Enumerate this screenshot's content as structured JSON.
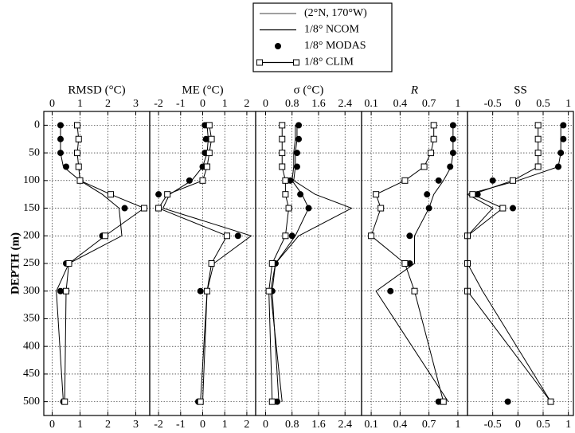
{
  "legend": [
    {
      "name": "(2°N, 170°W)",
      "style": "line"
    },
    {
      "name": "1/8° NCOM",
      "style": "line"
    },
    {
      "name": "1/8° MODAS",
      "style": "dots"
    },
    {
      "name": "1/8° CLIM",
      "style": "squares-line"
    }
  ],
  "chart_data": [
    {
      "type": "line",
      "xlabel": "RMSD (°C)",
      "ylabel": "DEPTH (m)",
      "xlim": [
        -0.3,
        3.5
      ],
      "xticks": [
        0,
        1,
        2,
        3
      ],
      "ylim": [
        -25,
        525
      ],
      "yticks": [
        0,
        50,
        100,
        150,
        200,
        250,
        300,
        350,
        400,
        450,
        500
      ],
      "grid": true,
      "y": [
        0,
        25,
        50,
        75,
        100,
        125,
        150,
        200,
        250,
        300,
        500
      ],
      "series": [
        {
          "style": "line",
          "color": "#000000",
          "values": [
            0.3,
            0.3,
            0.3,
            0.4,
            1.0,
            1.8,
            2.4,
            2.5,
            0.6,
            0.15,
            0.4
          ]
        },
        {
          "style": "dots",
          "color": "#000000",
          "values": [
            0.3,
            0.3,
            0.3,
            0.5,
            null,
            null,
            2.6,
            1.8,
            0.5,
            0.3,
            0.4
          ]
        },
        {
          "style": "squares-line",
          "color": "#000000",
          "values": [
            0.9,
            0.95,
            0.9,
            0.95,
            1.0,
            2.1,
            3.3,
            1.9,
            0.6,
            0.5,
            0.45
          ]
        }
      ]
    },
    {
      "type": "line",
      "xlabel": "ME (°C)",
      "xlim": [
        -2.4,
        2.4
      ],
      "xticks": [
        -2,
        -1,
        0,
        1,
        2
      ],
      "grid": true,
      "y": [
        0,
        25,
        50,
        75,
        100,
        125,
        150,
        200,
        250,
        300,
        500
      ],
      "series": [
        {
          "style": "line",
          "color": "#000000",
          "values": [
            0.2,
            0.25,
            0.2,
            0.0,
            -0.5,
            -1.5,
            -1.8,
            2.2,
            0.5,
            0.2,
            0.0
          ]
        },
        {
          "style": "dots",
          "color": "#000000",
          "values": [
            0.1,
            0.15,
            0.1,
            0.0,
            -0.6,
            -2.0,
            -2.0,
            1.6,
            null,
            -0.1,
            -0.2
          ]
        },
        {
          "style": "squares-line",
          "color": "#000000",
          "values": [
            0.3,
            0.4,
            0.3,
            0.2,
            0.0,
            -1.6,
            -2.0,
            1.1,
            0.4,
            0.2,
            -0.1
          ]
        }
      ]
    },
    {
      "type": "line",
      "xlabel": "σ (°C)",
      "xlim": [
        -0.3,
        2.9
      ],
      "xticks": [
        0,
        0.8,
        1.6,
        2.4
      ],
      "grid": true,
      "y": [
        0,
        25,
        50,
        75,
        100,
        125,
        150,
        200,
        250,
        300,
        500
      ],
      "series": [
        {
          "style": "line",
          "color": "#000000",
          "values": [
            0.95,
            0.95,
            0.9,
            0.9,
            0.85,
            1.5,
            2.6,
            1.0,
            0.3,
            0.15,
            0.5
          ]
        },
        {
          "style": "line",
          "color": "#000000",
          "values": [
            0.9,
            0.9,
            0.85,
            0.85,
            0.8,
            1.1,
            1.3,
            0.9,
            0.3,
            0.2,
            0.4
          ]
        },
        {
          "style": "dots",
          "color": "#000000",
          "values": [
            1.0,
            1.0,
            0.95,
            0.95,
            0.75,
            1.05,
            1.3,
            0.8,
            0.3,
            0.2,
            0.35
          ]
        },
        {
          "style": "squares-line",
          "color": "#000000",
          "values": [
            0.5,
            0.5,
            0.5,
            0.5,
            0.6,
            0.6,
            0.7,
            0.6,
            0.2,
            0.1,
            0.2
          ]
        }
      ]
    },
    {
      "type": "line",
      "xlabel": "R",
      "xlim": [
        0,
        1.1
      ],
      "xticks": [
        0.1,
        0.4,
        0.7,
        1
      ],
      "grid": true,
      "y": [
        0,
        25,
        50,
        75,
        100,
        125,
        150,
        200,
        250,
        300,
        500
      ],
      "series": [
        {
          "style": "line",
          "color": "#000000",
          "values": [
            0.95,
            0.95,
            0.95,
            0.93,
            0.85,
            0.75,
            0.7,
            0.55,
            0.55,
            0.15,
            0.9
          ]
        },
        {
          "style": "dots",
          "color": "#000000",
          "values": [
            0.95,
            0.95,
            0.95,
            0.92,
            0.8,
            0.68,
            0.7,
            0.5,
            0.5,
            0.3,
            0.8
          ]
        },
        {
          "style": "squares-line",
          "color": "#000000",
          "values": [
            0.75,
            0.75,
            0.72,
            0.65,
            0.45,
            0.15,
            0.2,
            0.1,
            0.45,
            0.55,
            0.85
          ]
        }
      ]
    },
    {
      "type": "line",
      "xlabel": "SS",
      "xlim": [
        -1,
        1.1
      ],
      "xticks": [
        -0.5,
        0,
        0.5,
        1
      ],
      "grid": true,
      "y": [
        0,
        25,
        50,
        75,
        100,
        125,
        150,
        200,
        250,
        300,
        500
      ],
      "series": [
        {
          "style": "line",
          "color": "#000000",
          "values": [
            0.85,
            0.85,
            0.85,
            0.8,
            0.0,
            -1.0,
            -0.5,
            -1.0,
            -1.0,
            -0.7,
            0.65
          ]
        },
        {
          "style": "dots",
          "color": "#000000",
          "values": [
            0.9,
            0.9,
            0.85,
            0.8,
            -0.5,
            -0.8,
            -0.1,
            null,
            null,
            null,
            -0.2
          ]
        },
        {
          "style": "squares-line",
          "color": "#000000",
          "values": [
            0.4,
            0.4,
            0.4,
            0.4,
            -0.1,
            -0.9,
            -0.3,
            -1.0,
            -1.0,
            -1.0,
            0.65
          ]
        }
      ]
    }
  ]
}
